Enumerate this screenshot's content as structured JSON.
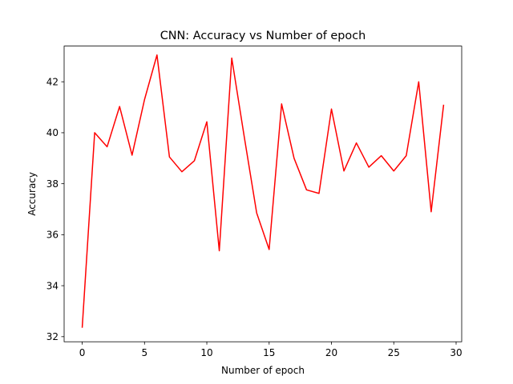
{
  "chart_data": {
    "type": "line",
    "title": "CNN: Accuracy vs Number of epoch",
    "xlabel": "Number of epoch",
    "ylabel": "Accuracy",
    "xlim": [
      -1.45,
      30.45
    ],
    "ylim": [
      31.8,
      43.4
    ],
    "xticks": [
      0,
      5,
      10,
      15,
      20,
      25,
      30
    ],
    "yticks": [
      32,
      34,
      36,
      38,
      40,
      42
    ],
    "grid": false,
    "series": [
      {
        "color": "#ff0000",
        "x": [
          0,
          1,
          2,
          3,
          4,
          5,
          6,
          7,
          8,
          9,
          10,
          11,
          12,
          13,
          14,
          15,
          16,
          17,
          18,
          19,
          20,
          21,
          22,
          23,
          24,
          25,
          26,
          27,
          28,
          29
        ],
        "y": [
          32.35,
          40.0,
          39.45,
          41.03,
          39.12,
          41.3,
          43.05,
          39.05,
          38.47,
          38.9,
          40.43,
          35.37,
          42.93,
          39.85,
          36.85,
          35.42,
          41.13,
          39.0,
          37.76,
          37.62,
          40.93,
          38.5,
          39.6,
          38.65,
          39.1,
          38.5,
          39.1,
          42.0,
          36.9,
          41.1
        ]
      }
    ]
  }
}
